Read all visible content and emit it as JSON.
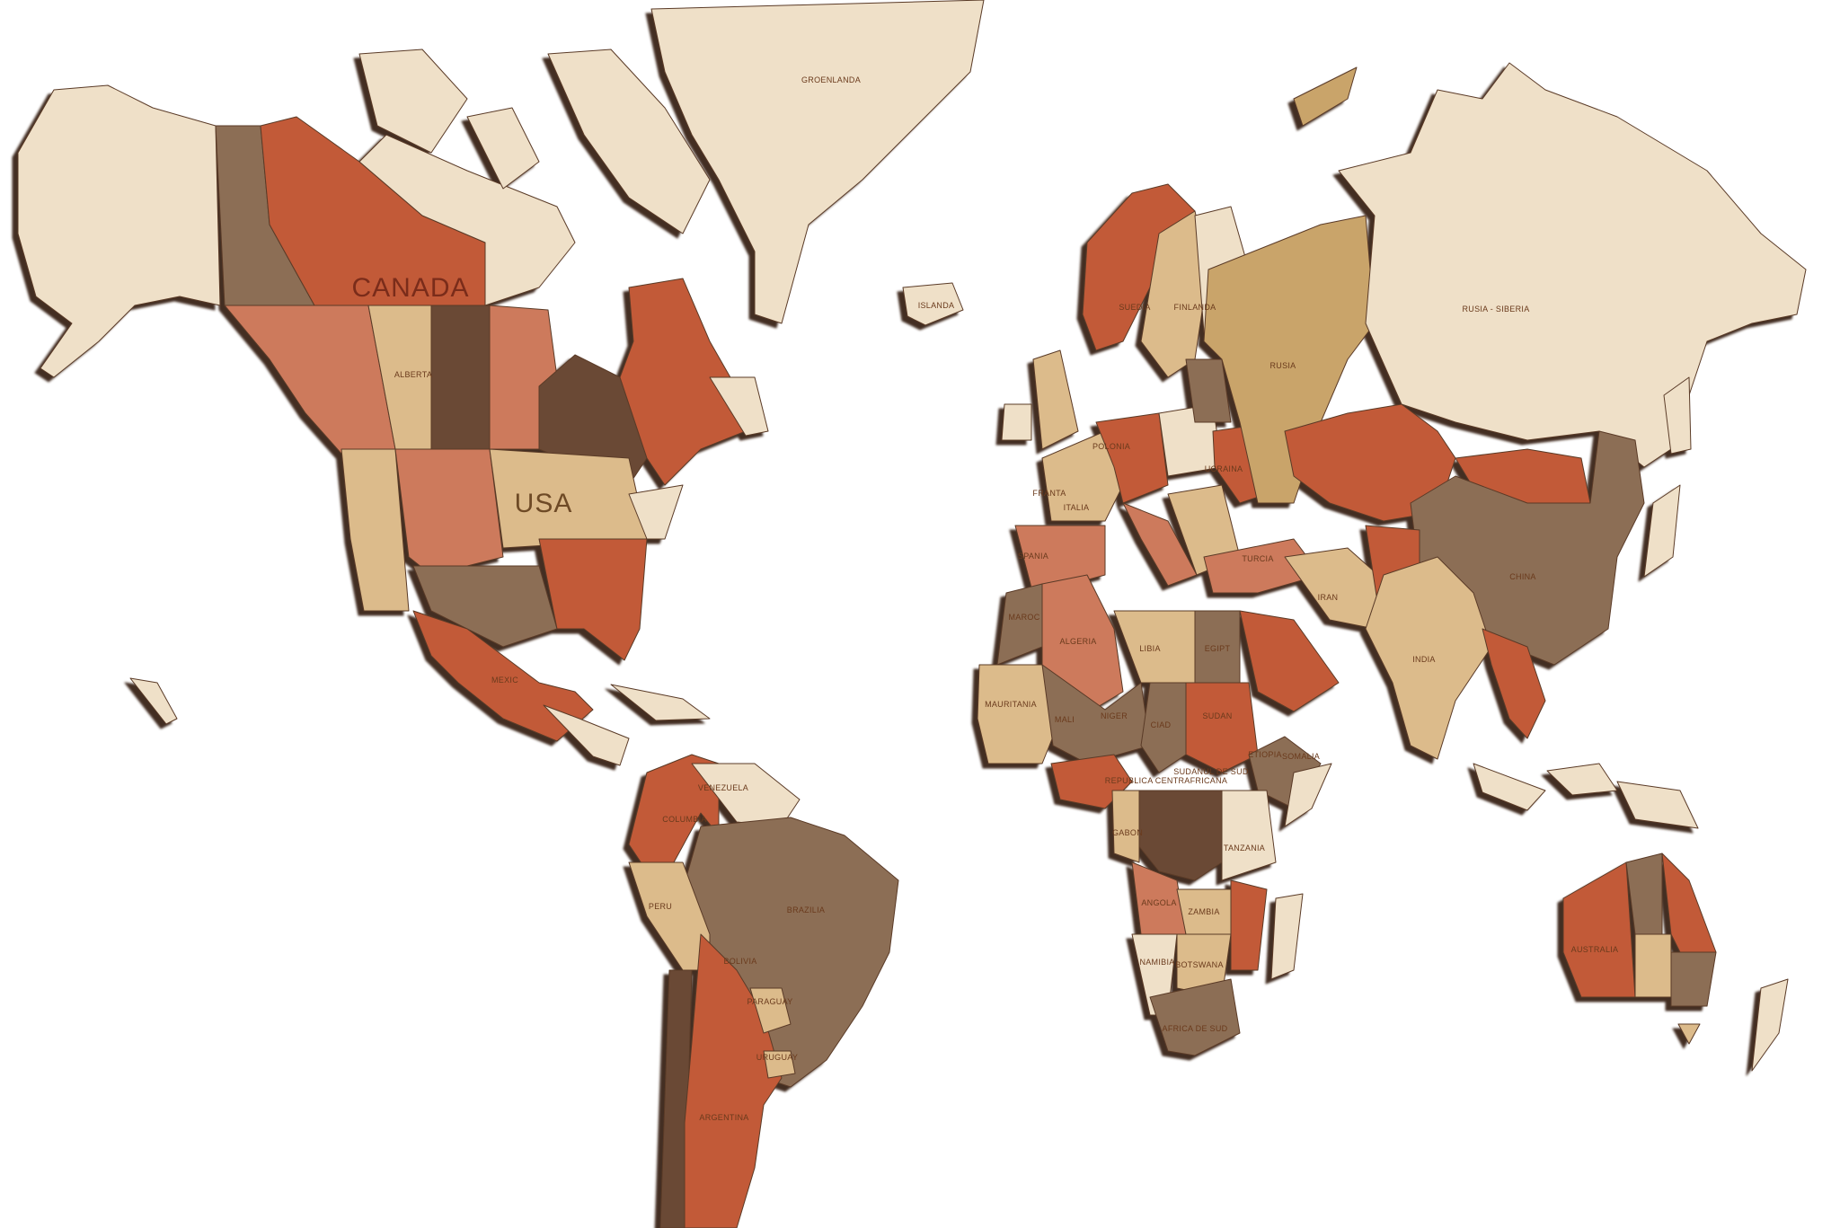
{
  "palette": {
    "background": "#ffffff",
    "cream": "#efe0c8",
    "light_tan": "#dcbb8b",
    "tan": "#c9a46b",
    "orange": "#c25a38",
    "pink_orange": "#cd7a5c",
    "grey_brown": "#8c6e55",
    "dark_brown": "#6b4a35",
    "shadow": "#3a2418",
    "engraving": "#6a3a1c"
  },
  "labels": {
    "canada": "CANADA",
    "usa": "USA",
    "mexic": "MEXIC",
    "alberta": "ALBERTA",
    "groenlanda": "GROENLANDA",
    "islanda": "ISLANDA",
    "suedia": "SUEDIA",
    "finlanda": "FINLANDA",
    "rusia": "RUSIA",
    "rusia_siberia": "RUSIA - SIBERIA",
    "polonia": "POLONIA",
    "ucraina": "UCRAINA",
    "franta": "FRANTA",
    "spania": "SPANIA",
    "italia": "ITALIA",
    "turcia": "TURCIA",
    "iran": "IRAN",
    "india": "INDIA",
    "china": "CHINA",
    "maroc": "MAROC",
    "algeria": "ALGERIA",
    "libia": "LIBIA",
    "egipt": "EGIPT",
    "mauritania": "MAURITANIA",
    "mali": "MALI",
    "niger": "NIGER",
    "ciad": "CIAD",
    "sudan": "SUDAN",
    "etiopia": "ETIOPIA",
    "somalia": "SOMALIA",
    "sudanul_de_sud": "SUDANUL DE SUD",
    "republica_centrafricana": "REPUBLICA CENTRAFRICANA",
    "gabon": "GABON",
    "tanzania": "TANZANIA",
    "angola": "ANGOLA",
    "zambia": "ZAMBIA",
    "namibia": "NAMIBIA",
    "botswana": "BOTSWANA",
    "africa_de_sud": "AFRICA DE SUD",
    "venezuela": "VENEZUELA",
    "columbia": "COLUMBIA",
    "peru": "PERU",
    "brazilia": "BRAZILIA",
    "bolivia": "BOLIVIA",
    "paraguay": "PARAGUAY",
    "uruguay": "URUGUAY",
    "argentina": "ARGENTINA",
    "australia": "AUSTRALIA"
  }
}
